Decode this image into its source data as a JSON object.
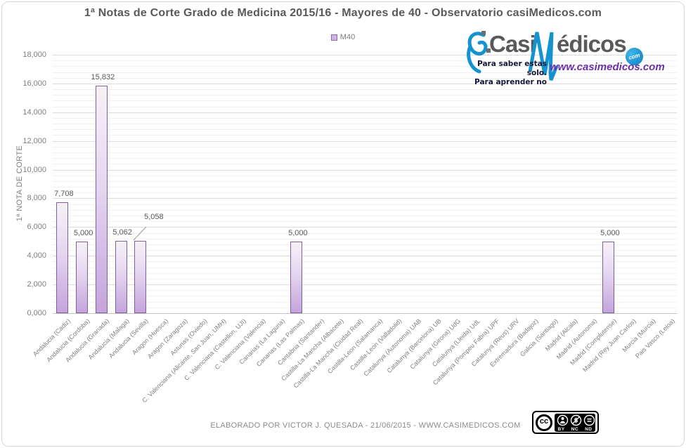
{
  "page": {
    "footer": "ELABORADO POR VICTOR J. QUESADA - 21/06/2015 - WWW.CASIMEDICOS.COM"
  },
  "logo": {
    "brand_prefix": "Casi",
    "brand_suffix": "édicos",
    "brand_tld": "com",
    "tagline_line1": "Para saber estas solo.",
    "tagline_line2": "Para aprender no",
    "url": "www.casimedicos.com",
    "blue": "#1593d1",
    "purple": "#6b2fa8",
    "gray": "#58595b"
  },
  "license_badge": {
    "cc_label": "cc",
    "terms": [
      "BY",
      "NC",
      "ND"
    ]
  },
  "chart_data": {
    "type": "bar",
    "title": "1ª Notas de Corte Grado de Medicina 2015/16 - Mayores de 40 - Observatorio casiMedicos.com",
    "ylabel": "1ª NOTA DE CORTE",
    "xlabel": "",
    "legend_label": "M40",
    "legend_position": "top-center",
    "grid": true,
    "ylim": [
      0,
      18
    ],
    "major_unit": 2,
    "minor_unit": 0.4,
    "yticks": [
      "0,000",
      "2,000",
      "4,000",
      "6,000",
      "8,000",
      "10,000",
      "12,000",
      "14,000",
      "16,000",
      "18,000"
    ],
    "categories": [
      "Andalucia (Cadiz)",
      "Andalucia (Cordoba)",
      "Andalucia (Granada)",
      "Andalucia (Malaga)",
      "Andalucia (Sevilla)",
      "Aragon (Huesca)",
      "Aragon (Zaragoza)",
      "Asturias (Oviedo)",
      "C. Valenciana (Alicante, San Juan, UMH)",
      "C. Valenciana (Castellon, UJI)",
      "C. Valenciana (Valencia)",
      "Canarias (La Laguna)",
      "Canarias (Las Palmas)",
      "Cantabria (Santander)",
      "Castilla-La Mancha (Albacete)",
      "Castilla-La Mancha (Ciudad Real)",
      "Castilla-Leon (Salamanca)",
      "Castilla-Leon (Valladolid)",
      "Catalunya (Autonoma) UAB",
      "Catalunya (Barcelona) UB",
      "Catalunya (Girona) UdG",
      "Catalunya (Lleida) UdL",
      "Catalunya (Pompeu Fabra) UPF",
      "Catalunya (Reus) URV",
      "Extremadura (Badajoz)",
      "Galicia (Santiago)",
      "Madrid (Alcala)",
      "Madrid (Autonoma)",
      "Madrid (Complutense)",
      "Madrid (Rey Juan Carlos)",
      "Murcia (Murcia)",
      "Pais Vasco (Leioa)"
    ],
    "values": [
      7.708,
      5.0,
      15.832,
      5.062,
      5.058,
      null,
      null,
      null,
      null,
      null,
      null,
      null,
      5.0,
      null,
      null,
      null,
      null,
      null,
      null,
      null,
      null,
      null,
      null,
      null,
      null,
      null,
      null,
      null,
      5.0,
      null,
      null,
      null
    ],
    "value_labels": [
      "7,708",
      "5,000",
      "15,832",
      "5,062",
      "5,058",
      null,
      null,
      null,
      null,
      null,
      null,
      null,
      "5,000",
      null,
      null,
      null,
      null,
      null,
      null,
      null,
      null,
      null,
      null,
      null,
      null,
      null,
      null,
      null,
      "5,000",
      null,
      null,
      null
    ],
    "callout_index": 4,
    "colors": {
      "bar_fill_top": "#f4f1f2",
      "bar_fill_bottom": "#c4a4dc",
      "bar_border": "#7e5fa0",
      "gridline_major": "#dcdcdc",
      "gridline_minor": "#f1f1f1",
      "axis_text": "#7f7f7f",
      "title_text": "#595959",
      "label_text": "#595959"
    }
  }
}
